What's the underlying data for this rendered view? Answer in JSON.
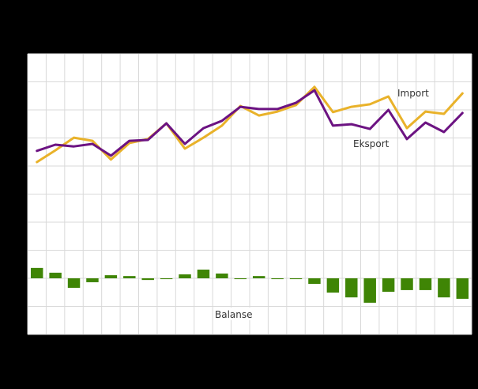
{
  "chart_data": {
    "type": "line",
    "title": "",
    "xlabel": "",
    "ylabel": "",
    "ylim": [
      -20,
      80
    ],
    "yticks": [
      -20,
      -10,
      0,
      10,
      20,
      30,
      40,
      50,
      60,
      70,
      80
    ],
    "grid": true,
    "legend_position": "inline",
    "x": [
      1,
      2,
      3,
      4,
      5,
      6,
      7,
      8,
      9,
      10,
      11,
      12,
      13,
      14,
      15,
      16,
      17,
      18,
      19,
      20,
      21,
      22,
      23,
      24
    ],
    "series": [
      {
        "name": "Import",
        "type": "line",
        "color": "#e9b22a",
        "values": [
          41.4,
          45.6,
          50.1,
          49.0,
          42.3,
          48.2,
          49.6,
          55.2,
          46.2,
          50.1,
          54.4,
          61.4,
          58.0,
          59.4,
          61.7,
          68.2,
          59.2,
          61.1,
          62.0,
          64.8,
          53.5,
          59.4,
          58.6,
          65.9
        ]
      },
      {
        "name": "Eksport",
        "type": "line",
        "color": "#6c1382",
        "values": [
          45.4,
          47.6,
          47.0,
          47.9,
          43.7,
          49.0,
          49.3,
          55.2,
          47.9,
          53.5,
          56.1,
          61.1,
          60.3,
          60.3,
          62.5,
          67.0,
          54.4,
          54.9,
          53.2,
          60.0,
          49.6,
          55.5,
          52.1,
          58.9
        ]
      },
      {
        "name": "Balanse",
        "type": "bar",
        "color": "#3f8505",
        "values": [
          3.7,
          2.0,
          -3.4,
          -1.4,
          1.1,
          0.8,
          -0.6,
          -0.3,
          1.4,
          3.1,
          1.7,
          -0.3,
          0.8,
          -0.3,
          -0.3,
          -2.0,
          -5.1,
          -6.8,
          -8.7,
          -4.8,
          -4.2,
          -4.2,
          -6.8,
          -7.3
        ]
      }
    ],
    "annotations": [
      {
        "text": "Import",
        "series": "Import"
      },
      {
        "text": "Eksport",
        "series": "Eksport"
      },
      {
        "text": "Balanse",
        "series": "Balanse"
      }
    ]
  },
  "labels": {
    "import": "Import",
    "eksport": "Eksport",
    "balanse": "Balanse"
  },
  "colors": {
    "background": "#000000",
    "plot_background": "#ffffff",
    "grid": "#d9d9d9",
    "import": "#e9b22a",
    "eksport": "#6c1382",
    "balanse": "#3f8505"
  }
}
